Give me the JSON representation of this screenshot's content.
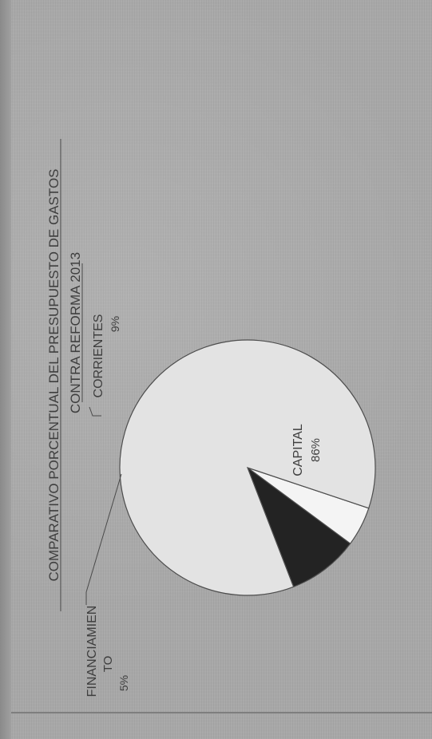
{
  "chart_data": {
    "type": "pie",
    "title_lines": [
      "COMPARATIVO PORCENTUAL DEL PRESUPUESTO DE GASTOS",
      "CONTRA REFORMA 2013"
    ],
    "slices": [
      {
        "name": "CAPITAL",
        "label_lines": [
          "CAPITAL"
        ],
        "value": 86,
        "value_text": "86%",
        "color": "#e3e3e3"
      },
      {
        "name": "FINANCIAMIENTO",
        "label_lines": [
          "FINANCIAMIEN",
          "TO"
        ],
        "value": 5,
        "value_text": "5%",
        "color": "#f4f4f4"
      },
      {
        "name": "CORRIENTES",
        "label_lines": [
          "CORRIENTES"
        ],
        "value": 9,
        "value_text": "9%",
        "color": "#232323"
      }
    ],
    "legend": "none",
    "grid": false
  }
}
